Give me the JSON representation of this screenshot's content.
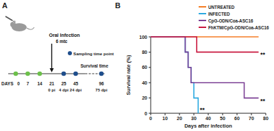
{
  "timeline": {
    "panel_label": "A",
    "days_label": "DAYS",
    "immunization_days": [
      0,
      7,
      14
    ],
    "infection": {
      "day": 21,
      "dpi": "0 pi",
      "label": "Oral Infection",
      "dose": "6 mtc"
    },
    "sampling": [
      {
        "day": 25,
        "dpi": "4 dpi"
      },
      {
        "day": 45,
        "dpi": "24 dpi"
      }
    ],
    "sampling_label": "Sampling time point",
    "survival": {
      "day": 96,
      "dpi": "75 dpi",
      "label": "Survival time"
    }
  },
  "chart_data": {
    "type": "step",
    "panel_label": "B",
    "x_label": "Days after infection",
    "y_label": "Survival rate (%)",
    "xlim": [
      0,
      80
    ],
    "xticks": [
      0,
      10,
      20,
      30,
      40,
      50,
      60,
      70,
      80
    ],
    "ylim": [
      0,
      100
    ],
    "yticks": [
      0,
      20,
      40,
      60,
      80,
      100
    ],
    "grid": false,
    "legend": "top-right",
    "series": [
      {
        "name": "UNTREATED",
        "color": "#f47a20",
        "x": [
          0,
          75
        ],
        "values": [
          100,
          100
        ]
      },
      {
        "name": "INFECTED",
        "color": "#29a8e0",
        "x": [
          0,
          24,
          26,
          28,
          30,
          33
        ],
        "values": [
          100,
          80,
          60,
          40,
          20,
          0
        ]
      },
      {
        "name": "CpG-ODN/Coa-ASC16",
        "color": "#7b3f94",
        "x": [
          0,
          24,
          26,
          28,
          65,
          75
        ],
        "values": [
          100,
          80,
          60,
          40,
          20,
          20
        ]
      },
      {
        "name": "FhKTM/CpG-ODN/Coa-ASC16",
        "color": "#c8143c",
        "x": [
          0,
          32,
          75
        ],
        "values": [
          100,
          80,
          80
        ]
      }
    ],
    "annotations": [
      {
        "text": "**",
        "x": 33,
        "y": 0
      },
      {
        "text": "**",
        "x": 75,
        "y": 20
      },
      {
        "text": "**",
        "x": 75,
        "y": 80
      }
    ]
  }
}
